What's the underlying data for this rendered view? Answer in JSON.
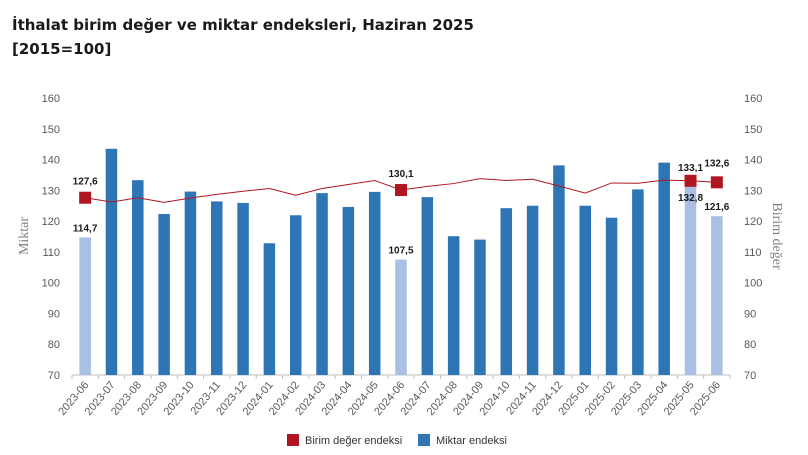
{
  "title": "İthalat birim değer ve miktar endeksleri, Haziran 2025",
  "subtitle": "[2015=100]",
  "colors": {
    "bar": "#2e75b6",
    "bar_highlight": "#a9bfe3",
    "line": "#b0161f",
    "marker": "#b0161f",
    "axis": "#bfbfbf"
  },
  "chart_data": {
    "type": "bar+line",
    "categories": [
      "2023-06",
      "2023-07",
      "2023-08",
      "2023-09",
      "2023-10",
      "2023-11",
      "2023-12",
      "2024-01",
      "2024-02",
      "2024-03",
      "2024-04",
      "2024-05",
      "2024-06",
      "2024-07",
      "2024-08",
      "2024-09",
      "2024-10",
      "2024-11",
      "2024-12",
      "2025-01",
      "2025-02",
      "2025-03",
      "2025-04",
      "2025-05",
      "2025-06"
    ],
    "ylabel_left": "Miktar",
    "ylabel_right": "Birim değer",
    "ylim": [
      70,
      160
    ],
    "yticks": [
      70,
      80,
      90,
      100,
      110,
      120,
      130,
      140,
      150,
      160
    ],
    "highlight_indices": [
      0,
      12,
      23,
      24
    ],
    "marker_indices": [
      0,
      12,
      23,
      24
    ],
    "series": [
      {
        "name": "Miktar endeksi",
        "kind": "bar",
        "axis": "left",
        "values": [
          114.7,
          143.5,
          133.3,
          122.3,
          129.6,
          126.4,
          125.9,
          112.8,
          121.9,
          129.1,
          124.6,
          129.5,
          107.5,
          127.8,
          115.1,
          114.0,
          124.2,
          125.0,
          138.1,
          125.0,
          121.1,
          130.3,
          139.0,
          132.8,
          121.6
        ]
      },
      {
        "name": "Birim değer endeksi",
        "kind": "line",
        "axis": "right",
        "values": [
          127.6,
          126.2,
          127.6,
          126.1,
          127.5,
          128.7,
          129.7,
          130.6,
          128.4,
          130.6,
          131.9,
          133.2,
          130.1,
          131.3,
          132.2,
          133.8,
          133.2,
          133.6,
          131.4,
          129.1,
          132.4,
          132.3,
          133.3,
          133.1,
          132.6
        ]
      }
    ],
    "data_labels": [
      {
        "index": 0,
        "series": "line",
        "text": "127,6"
      },
      {
        "index": 0,
        "series": "bar",
        "text": "114,7"
      },
      {
        "index": 12,
        "series": "line",
        "text": "130,1"
      },
      {
        "index": 12,
        "series": "bar",
        "text": "107,5"
      },
      {
        "index": 23,
        "series": "line",
        "text": "133,1"
      },
      {
        "index": 23,
        "series": "bar",
        "text": "132,8"
      },
      {
        "index": 24,
        "series": "line",
        "text": "132,6"
      },
      {
        "index": 24,
        "series": "bar",
        "text": "121,6"
      }
    ],
    "legend": {
      "position": "bottom",
      "items": [
        {
          "label": "Birim değer endeksi",
          "kind": "marker"
        },
        {
          "label": "Miktar endeksi",
          "kind": "bar"
        }
      ]
    },
    "grid": false
  }
}
